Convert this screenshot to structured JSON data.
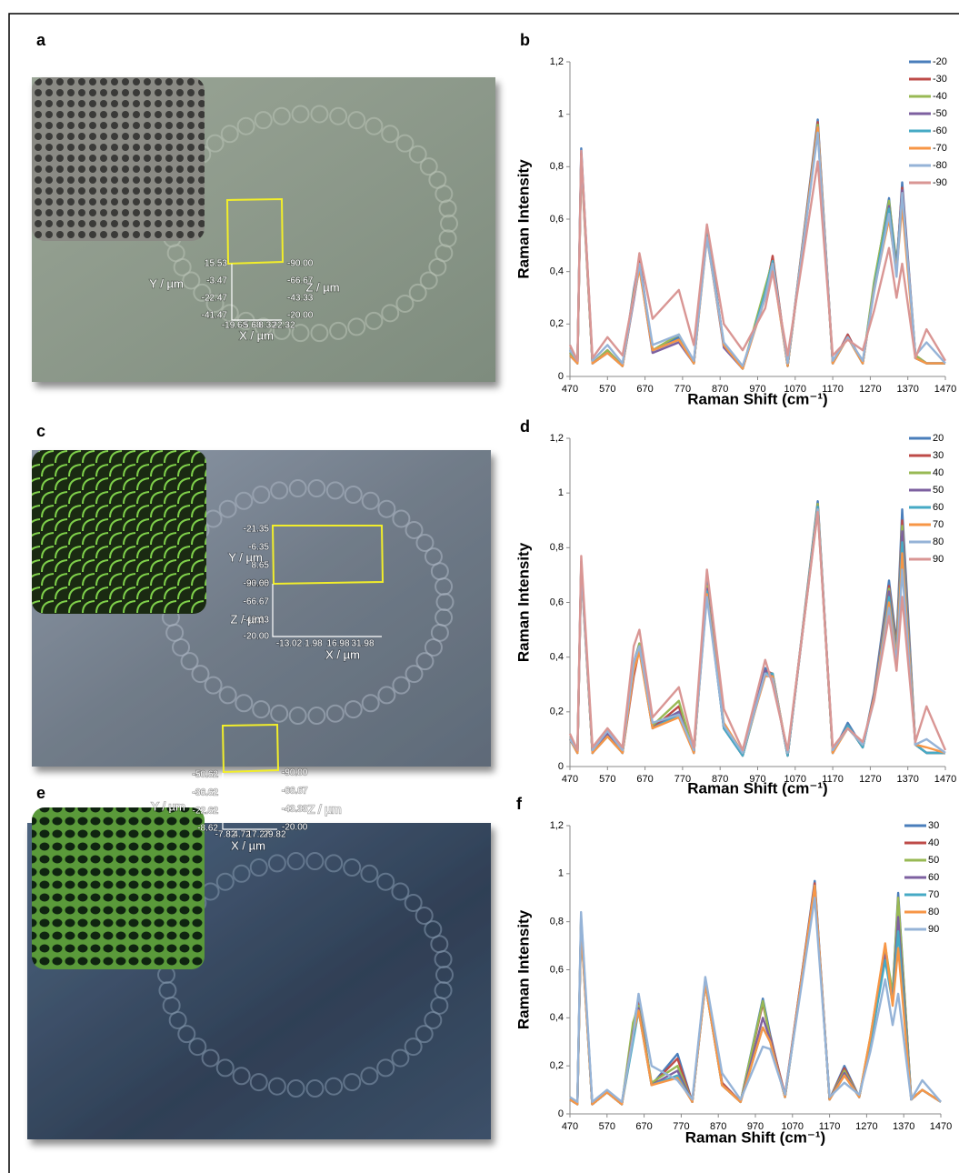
{
  "panels": [
    {
      "label": "a",
      "y_label": "Y / µm",
      "z_label": "Z / µm",
      "x_label": "X / µm",
      "y_ticks": [
        "15.53",
        "-3.47",
        "-22.47",
        "-41.47"
      ],
      "z_ticks": [
        "-90.00",
        "-66.67",
        "-43.33",
        "-20.00"
      ],
      "x_ticks": [
        "-19.68",
        "-5.68",
        "8.32",
        "22.32"
      ]
    },
    {
      "label": "c",
      "y_label": "Y / µm",
      "z_label": "Z / µm",
      "x_label": "X / µm",
      "y_ticks": [
        "-21.35",
        "-6.35",
        "8.65",
        "23.65"
      ],
      "z_ticks": [
        "-90.00",
        "-66.67",
        "-43.33",
        "-20.00"
      ],
      "x_ticks": [
        "-13.02",
        "1.98",
        "16.98",
        "31.98"
      ]
    },
    {
      "label": "e",
      "y_label": "Y / µm",
      "z_label": "Z / µm",
      "x_label": "X / µm",
      "y_ticks": [
        "-50.62",
        "-36.62",
        "-22.62",
        "-8.62"
      ],
      "z_ticks": [
        "-90.00",
        "-66.67",
        "-43.33",
        "-20.00"
      ],
      "x_ticks": [
        "-7.82",
        "4.72",
        "17.27",
        "29.82"
      ]
    }
  ],
  "chart_data": [
    {
      "type": "line",
      "panel": "b",
      "y_label": "Raman Intensity",
      "x_label": "Raman Shift (cm⁻¹)",
      "legend": "right",
      "xlim": [
        470,
        1470
      ],
      "xticks": [
        470,
        570,
        670,
        770,
        870,
        970,
        1070,
        1170,
        1270,
        1370,
        1470
      ],
      "ylim": [
        0,
        1.2
      ],
      "yticks": [
        0,
        {
          "value": 0.2,
          "label": "0,2"
        },
        {
          "value": 0.4,
          "label": "0,4"
        },
        {
          "value": 0.6,
          "label": "0,6"
        },
        {
          "value": 0.8,
          "label": "0,8"
        },
        1,
        {
          "value": 1.2,
          "label": "1,2"
        }
      ],
      "x": [
        470,
        490,
        500,
        530,
        570,
        610,
        640,
        655,
        690,
        760,
        800,
        835,
        880,
        930,
        990,
        1010,
        1050,
        1130,
        1170,
        1210,
        1250,
        1280,
        1320,
        1340,
        1355,
        1390,
        1420,
        1470
      ],
      "series": [
        {
          "name": "-20",
          "color": "#4a7ebb",
          "values": [
            0.1,
            0.05,
            0.87,
            0.05,
            0.1,
            0.04,
            0.33,
            0.45,
            0.1,
            0.15,
            0.05,
            0.57,
            0.12,
            0.03,
            0.33,
            0.45,
            0.04,
            0.98,
            0.05,
            0.16,
            0.05,
            0.35,
            0.68,
            0.4,
            0.74,
            0.08,
            0.05,
            0.05
          ]
        },
        {
          "name": "-30",
          "color": "#be4b48",
          "values": [
            0.09,
            0.05,
            0.85,
            0.05,
            0.1,
            0.04,
            0.3,
            0.44,
            0.1,
            0.14,
            0.05,
            0.56,
            0.12,
            0.03,
            0.31,
            0.46,
            0.04,
            0.97,
            0.05,
            0.16,
            0.05,
            0.34,
            0.66,
            0.42,
            0.72,
            0.08,
            0.05,
            0.05
          ]
        },
        {
          "name": "-40",
          "color": "#98b954",
          "values": [
            0.09,
            0.05,
            0.84,
            0.05,
            0.1,
            0.04,
            0.32,
            0.43,
            0.1,
            0.16,
            0.05,
            0.55,
            0.12,
            0.03,
            0.34,
            0.44,
            0.04,
            0.96,
            0.05,
            0.15,
            0.05,
            0.36,
            0.67,
            0.43,
            0.7,
            0.08,
            0.05,
            0.05
          ]
        },
        {
          "name": "-50",
          "color": "#7d60a0",
          "values": [
            0.08,
            0.05,
            0.84,
            0.05,
            0.09,
            0.04,
            0.29,
            0.42,
            0.09,
            0.13,
            0.05,
            0.54,
            0.11,
            0.03,
            0.31,
            0.43,
            0.04,
            0.95,
            0.05,
            0.15,
            0.05,
            0.33,
            0.65,
            0.42,
            0.71,
            0.07,
            0.05,
            0.05
          ]
        },
        {
          "name": "-60",
          "color": "#46aac5",
          "values": [
            0.08,
            0.05,
            0.83,
            0.05,
            0.09,
            0.04,
            0.31,
            0.42,
            0.1,
            0.14,
            0.05,
            0.55,
            0.12,
            0.03,
            0.32,
            0.44,
            0.04,
            0.94,
            0.05,
            0.15,
            0.05,
            0.34,
            0.64,
            0.41,
            0.69,
            0.07,
            0.05,
            0.05
          ]
        },
        {
          "name": "-70",
          "color": "#f79646",
          "values": [
            0.08,
            0.05,
            0.82,
            0.05,
            0.09,
            0.04,
            0.3,
            0.41,
            0.1,
            0.14,
            0.05,
            0.53,
            0.12,
            0.03,
            0.3,
            0.42,
            0.04,
            0.95,
            0.05,
            0.15,
            0.05,
            0.33,
            0.6,
            0.4,
            0.65,
            0.07,
            0.05,
            0.05
          ]
        },
        {
          "name": "-80",
          "color": "#95b3d7",
          "values": [
            0.1,
            0.06,
            0.84,
            0.06,
            0.12,
            0.05,
            0.3,
            0.43,
            0.12,
            0.16,
            0.06,
            0.53,
            0.13,
            0.04,
            0.3,
            0.43,
            0.05,
            0.93,
            0.06,
            0.15,
            0.06,
            0.32,
            0.62,
            0.38,
            0.7,
            0.08,
            0.13,
            0.05
          ]
        },
        {
          "name": "-90",
          "color": "#d99694",
          "values": [
            0.12,
            0.06,
            0.86,
            0.07,
            0.15,
            0.08,
            0.31,
            0.47,
            0.22,
            0.33,
            0.12,
            0.58,
            0.2,
            0.1,
            0.26,
            0.4,
            0.08,
            0.82,
            0.08,
            0.14,
            0.1,
            0.25,
            0.49,
            0.3,
            0.43,
            0.07,
            0.18,
            0.06
          ]
        }
      ]
    },
    {
      "type": "line",
      "panel": "d",
      "y_label": "Raman Intensity",
      "x_label": "Raman Shift (cm⁻¹)",
      "legend": "right",
      "xlim": [
        470,
        1470
      ],
      "xticks": [
        470,
        570,
        670,
        770,
        870,
        970,
        1070,
        1170,
        1270,
        1370,
        1470
      ],
      "ylim": [
        0,
        1.2
      ],
      "yticks": [
        0,
        {
          "value": 0.2,
          "label": "0,2"
        },
        {
          "value": 0.4,
          "label": "0,4"
        },
        {
          "value": 0.6,
          "label": "0,6"
        },
        {
          "value": 0.8,
          "label": "0,8"
        },
        1,
        {
          "value": 1.2,
          "label": "1,2"
        }
      ],
      "x": [
        470,
        490,
        500,
        530,
        570,
        610,
        640,
        655,
        690,
        760,
        800,
        835,
        880,
        930,
        990,
        1010,
        1050,
        1130,
        1170,
        1210,
        1250,
        1280,
        1320,
        1340,
        1355,
        1390,
        1420,
        1470
      ],
      "series": [
        {
          "name": "20",
          "color": "#4a7ebb",
          "values": [
            0.1,
            0.05,
            0.75,
            0.05,
            0.12,
            0.05,
            0.38,
            0.45,
            0.15,
            0.2,
            0.05,
            0.68,
            0.15,
            0.04,
            0.36,
            0.33,
            0.04,
            0.97,
            0.05,
            0.16,
            0.07,
            0.27,
            0.68,
            0.45,
            0.94,
            0.08,
            0.05,
            0.05
          ]
        },
        {
          "name": "30",
          "color": "#be4b48",
          "values": [
            0.1,
            0.05,
            0.74,
            0.05,
            0.12,
            0.05,
            0.33,
            0.43,
            0.14,
            0.22,
            0.05,
            0.66,
            0.14,
            0.04,
            0.35,
            0.34,
            0.04,
            0.96,
            0.05,
            0.15,
            0.07,
            0.26,
            0.66,
            0.44,
            0.9,
            0.08,
            0.05,
            0.05
          ]
        },
        {
          "name": "40",
          "color": "#98b954",
          "values": [
            0.1,
            0.05,
            0.74,
            0.05,
            0.12,
            0.05,
            0.37,
            0.45,
            0.15,
            0.24,
            0.05,
            0.66,
            0.15,
            0.04,
            0.34,
            0.33,
            0.04,
            0.96,
            0.05,
            0.15,
            0.07,
            0.26,
            0.65,
            0.43,
            0.88,
            0.08,
            0.05,
            0.05
          ]
        },
        {
          "name": "50",
          "color": "#7d60a0",
          "values": [
            0.1,
            0.05,
            0.73,
            0.05,
            0.12,
            0.05,
            0.36,
            0.44,
            0.14,
            0.2,
            0.05,
            0.65,
            0.14,
            0.04,
            0.35,
            0.33,
            0.04,
            0.95,
            0.05,
            0.15,
            0.07,
            0.26,
            0.64,
            0.42,
            0.86,
            0.08,
            0.05,
            0.05
          ]
        },
        {
          "name": "60",
          "color": "#46aac5",
          "values": [
            0.1,
            0.05,
            0.72,
            0.05,
            0.11,
            0.05,
            0.35,
            0.43,
            0.14,
            0.19,
            0.05,
            0.64,
            0.14,
            0.04,
            0.34,
            0.34,
            0.04,
            0.95,
            0.05,
            0.15,
            0.07,
            0.25,
            0.62,
            0.41,
            0.82,
            0.08,
            0.05,
            0.05
          ]
        },
        {
          "name": "70",
          "color": "#f79646",
          "values": [
            0.1,
            0.05,
            0.72,
            0.05,
            0.11,
            0.05,
            0.35,
            0.42,
            0.14,
            0.18,
            0.05,
            0.63,
            0.16,
            0.05,
            0.33,
            0.33,
            0.05,
            0.94,
            0.05,
            0.14,
            0.08,
            0.25,
            0.6,
            0.4,
            0.78,
            0.08,
            0.07,
            0.05
          ]
        },
        {
          "name": "80",
          "color": "#95b3d7",
          "values": [
            0.1,
            0.06,
            0.73,
            0.06,
            0.13,
            0.06,
            0.38,
            0.44,
            0.16,
            0.19,
            0.06,
            0.62,
            0.15,
            0.05,
            0.34,
            0.32,
            0.05,
            0.94,
            0.06,
            0.14,
            0.08,
            0.24,
            0.58,
            0.38,
            0.72,
            0.08,
            0.1,
            0.05
          ]
        },
        {
          "name": "90",
          "color": "#d99694",
          "values": [
            0.12,
            0.06,
            0.77,
            0.07,
            0.14,
            0.07,
            0.44,
            0.5,
            0.18,
            0.29,
            0.07,
            0.72,
            0.21,
            0.06,
            0.39,
            0.3,
            0.06,
            0.93,
            0.07,
            0.14,
            0.09,
            0.24,
            0.55,
            0.35,
            0.62,
            0.09,
            0.22,
            0.06
          ]
        }
      ]
    },
    {
      "type": "line",
      "panel": "f",
      "y_label": "Raman Intensity",
      "x_label": "Raman Shift (cm⁻¹)",
      "legend": "right",
      "xlim": [
        470,
        1470
      ],
      "xticks": [
        470,
        570,
        670,
        770,
        870,
        970,
        1070,
        1170,
        1270,
        1370,
        1470
      ],
      "ylim": [
        0,
        1.2
      ],
      "yticks": [
        0,
        {
          "value": 0.2,
          "label": "0,2"
        },
        {
          "value": 0.4,
          "label": "0,4"
        },
        {
          "value": 0.6,
          "label": "0,6"
        },
        {
          "value": 0.8,
          "label": "0,8"
        },
        1,
        {
          "value": 1.2,
          "label": "1,2"
        }
      ],
      "x": [
        470,
        490,
        500,
        530,
        570,
        610,
        640,
        655,
        690,
        760,
        800,
        835,
        880,
        930,
        990,
        1010,
        1050,
        1130,
        1170,
        1210,
        1250,
        1280,
        1320,
        1340,
        1355,
        1390,
        1420,
        1470
      ],
      "series": [
        {
          "name": "30",
          "color": "#4a7ebb",
          "values": [
            0.06,
            0.04,
            0.82,
            0.04,
            0.09,
            0.04,
            0.36,
            0.48,
            0.12,
            0.25,
            0.05,
            0.56,
            0.13,
            0.05,
            0.48,
            0.33,
            0.07,
            0.97,
            0.06,
            0.2,
            0.07,
            0.3,
            0.68,
            0.5,
            0.92,
            0.06,
            0.1,
            0.05
          ]
        },
        {
          "name": "40",
          "color": "#be4b48",
          "values": [
            0.06,
            0.04,
            0.8,
            0.04,
            0.09,
            0.04,
            0.35,
            0.46,
            0.12,
            0.23,
            0.05,
            0.55,
            0.13,
            0.05,
            0.46,
            0.32,
            0.08,
            0.96,
            0.06,
            0.19,
            0.07,
            0.31,
            0.67,
            0.48,
            0.9,
            0.06,
            0.1,
            0.05
          ]
        },
        {
          "name": "50",
          "color": "#98b954",
          "values": [
            0.06,
            0.04,
            0.8,
            0.04,
            0.09,
            0.04,
            0.38,
            0.45,
            0.13,
            0.2,
            0.05,
            0.55,
            0.12,
            0.05,
            0.47,
            0.31,
            0.07,
            0.95,
            0.06,
            0.18,
            0.07,
            0.32,
            0.7,
            0.5,
            0.9,
            0.06,
            0.1,
            0.05
          ]
        },
        {
          "name": "60",
          "color": "#7d60a0",
          "values": [
            0.06,
            0.04,
            0.79,
            0.04,
            0.09,
            0.04,
            0.34,
            0.44,
            0.12,
            0.18,
            0.05,
            0.54,
            0.12,
            0.05,
            0.4,
            0.31,
            0.07,
            0.95,
            0.06,
            0.17,
            0.07,
            0.3,
            0.66,
            0.47,
            0.82,
            0.06,
            0.1,
            0.05
          ]
        },
        {
          "name": "70",
          "color": "#46aac5",
          "values": [
            0.06,
            0.04,
            0.78,
            0.04,
            0.09,
            0.04,
            0.3,
            0.43,
            0.12,
            0.16,
            0.05,
            0.54,
            0.12,
            0.05,
            0.36,
            0.3,
            0.07,
            0.94,
            0.06,
            0.16,
            0.07,
            0.29,
            0.64,
            0.46,
            0.76,
            0.06,
            0.1,
            0.05
          ]
        },
        {
          "name": "80",
          "color": "#f79646",
          "values": [
            0.06,
            0.04,
            0.78,
            0.04,
            0.09,
            0.04,
            0.33,
            0.43,
            0.12,
            0.15,
            0.05,
            0.54,
            0.12,
            0.05,
            0.36,
            0.3,
            0.07,
            0.95,
            0.06,
            0.16,
            0.07,
            0.32,
            0.71,
            0.45,
            0.69,
            0.06,
            0.1,
            0.05
          ]
        },
        {
          "name": "90",
          "color": "#95b3d7",
          "values": [
            0.07,
            0.05,
            0.84,
            0.05,
            0.1,
            0.05,
            0.32,
            0.5,
            0.2,
            0.14,
            0.06,
            0.57,
            0.17,
            0.06,
            0.28,
            0.27,
            0.08,
            0.9,
            0.07,
            0.13,
            0.08,
            0.26,
            0.56,
            0.37,
            0.5,
            0.06,
            0.14,
            0.05
          ]
        }
      ]
    }
  ]
}
